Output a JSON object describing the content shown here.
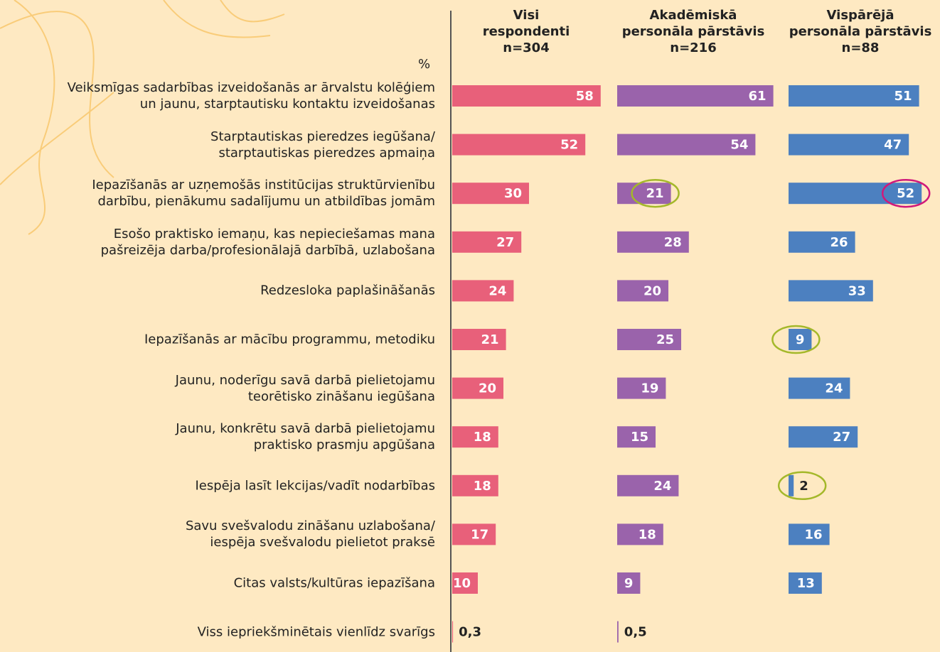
{
  "chart_data": {
    "type": "bar",
    "orientation": "horizontal",
    "unit_label": "%",
    "categories": [
      "Veiksmīgas sadarbības izveidošanās ar ārvalstu kolēģiem\nun jaunu, starptautisku kontaktu izveidošanas",
      "Starptautiskas pieredzes iegūšana/\nstarptautiskas pieredzes apmaiņa",
      "Iepazīšanās ar uzņemošās institūcijas struktūrvienību\ndarbību, pienākumu sadalījumu un atbildības jomām",
      "Esošo praktisko iemaņu, kas nepieciešamas mana\npašreizēja darba/profesionālajā darbībā, uzlabošana",
      "Redzesloka paplašināšanās",
      "Iepazīšanās ar mācību programmu, metodiku",
      "Jaunu, noderīgu savā darbā pielietojamu\nteorētisko zināšanu iegūšana",
      "Jaunu, konkrētu savā darbā pielietojamu\npraktisko prasmju apgūšana",
      "Iespēja lasīt lekcijas/vadīt nodarbības",
      "Savu svešvalodu zināšanu uzlabošana/\niespēja svešvalodu pielietot praksē",
      "Citas valsts/kultūras iepazīšana",
      "Viss iepriekšminētais vienlīdz svarīgs"
    ],
    "series": [
      {
        "name": "Visi\nrespondenti",
        "n": "n=304",
        "color": "#e8607a",
        "values": [
          58,
          52,
          30,
          27,
          24,
          21,
          20,
          18,
          18,
          17,
          10,
          0.3
        ],
        "value_labels": [
          "58",
          "52",
          "30",
          "27",
          "24",
          "21",
          "20",
          "18",
          "18",
          "17",
          "10",
          "0,3"
        ]
      },
      {
        "name": "Akadēmiskā\npersonāla pārstāvis",
        "n": "n=216",
        "color": "#9a63ab",
        "values": [
          61,
          54,
          21,
          28,
          20,
          25,
          19,
          15,
          24,
          18,
          9,
          0.5
        ],
        "value_labels": [
          "61",
          "54",
          "21",
          "28",
          "20",
          "25",
          "19",
          "15",
          "24",
          "18",
          "9",
          "0,5"
        ]
      },
      {
        "name": "Vispārējā\npersonāla pārstāvis",
        "n": "n=88",
        "color": "#4c80c0",
        "values": [
          51,
          47,
          52,
          26,
          33,
          9,
          24,
          27,
          2,
          16,
          13,
          null
        ],
        "value_labels": [
          "51",
          "47",
          "52",
          "26",
          "33",
          "9",
          "24",
          "27",
          "2",
          "16",
          "13",
          null
        ]
      }
    ],
    "xlim": [
      0,
      60
    ],
    "highlights": [
      {
        "series": 1,
        "category": 2,
        "color": "#a4b82a"
      },
      {
        "series": 2,
        "category": 2,
        "color": "#d0197a"
      },
      {
        "series": 2,
        "category": 5,
        "color": "#a4b82a"
      },
      {
        "series": 2,
        "category": 8,
        "color": "#a4b82a"
      }
    ]
  }
}
